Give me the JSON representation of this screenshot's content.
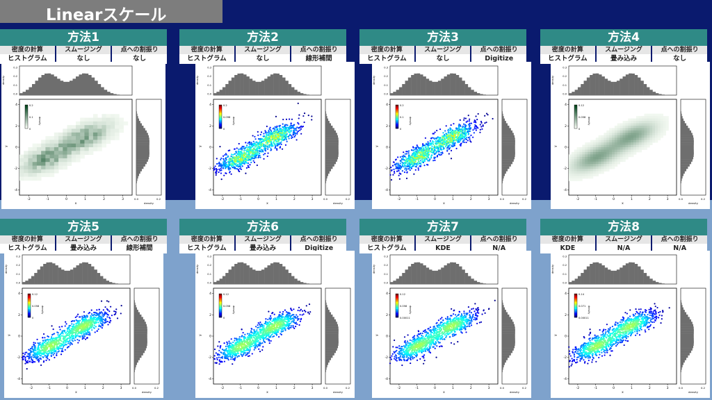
{
  "page_title": "Linearスケール",
  "header_labels": [
    "密度の計算",
    "スムージング",
    "点への割振り"
  ],
  "methods": [
    {
      "name": "方法1",
      "values": [
        "ヒストグラム",
        "なし",
        "なし"
      ],
      "cmap": "green",
      "shape": "hist",
      "cbar_ticks": [
        "0.2",
        "0.1",
        "0"
      ]
    },
    {
      "name": "方法2",
      "values": [
        "ヒストグラム",
        "なし",
        "線形補間"
      ],
      "cmap": "jet",
      "shape": "scatter-hist",
      "cbar_ticks": [
        "0.2",
        "0.098",
        "0"
      ]
    },
    {
      "name": "方法3",
      "values": [
        "ヒストグラム",
        "なし",
        "Digitize"
      ],
      "cmap": "jet",
      "shape": "scatter-hist",
      "cbar_ticks": [
        "0.2",
        "0.1",
        "0"
      ]
    },
    {
      "name": "方法4",
      "values": [
        "ヒストグラム",
        "畳み込み",
        "なし"
      ],
      "cmap": "green",
      "shape": "smooth",
      "cbar_ticks": [
        "0.12",
        "0.058",
        "0"
      ]
    },
    {
      "name": "方法5",
      "values": [
        "ヒストグラム",
        "畳み込み",
        "線形補間"
      ],
      "cmap": "jet",
      "shape": "scatter-smooth",
      "cbar_ticks": [
        "0.12",
        "0.058",
        "0"
      ]
    },
    {
      "name": "方法6",
      "values": [
        "ヒストグラム",
        "畳み込み",
        "Digitize"
      ],
      "cmap": "jet",
      "shape": "scatter-smooth",
      "cbar_ticks": [
        "0.12",
        "0.058",
        "0"
      ]
    },
    {
      "name": "方法7",
      "values": [
        "ヒストグラム",
        "KDE",
        "N/A"
      ],
      "cmap": "jet",
      "shape": "scatter-smooth",
      "cbar_ticks": [
        "0.12",
        "0.058",
        "0.00011"
      ]
    },
    {
      "name": "方法8",
      "values": [
        "KDE",
        "N/A",
        "N/A"
      ],
      "cmap": "jet",
      "shape": "scatter-smooth",
      "cbar_ticks": [
        "0.14",
        "0.071",
        "0.00011"
      ]
    }
  ],
  "axes": {
    "x_label": "x",
    "y_label": "y",
    "density_label": "density",
    "x_ticks": [
      "-2",
      "-1",
      "0",
      "1",
      "2",
      "3"
    ],
    "y_ticks": [
      "4",
      "2",
      "0",
      "-2",
      "-4"
    ],
    "top_ticks": [
      "0.3",
      "0.2",
      "0.1",
      "0.0"
    ],
    "right_ticks": [
      "0.0",
      "0.2"
    ]
  },
  "colors": {
    "top_band": "#0a1a6e",
    "bottom_band": "#7ea2cc",
    "header": "#2f8a86",
    "title_box": "#7d7d7d"
  }
}
